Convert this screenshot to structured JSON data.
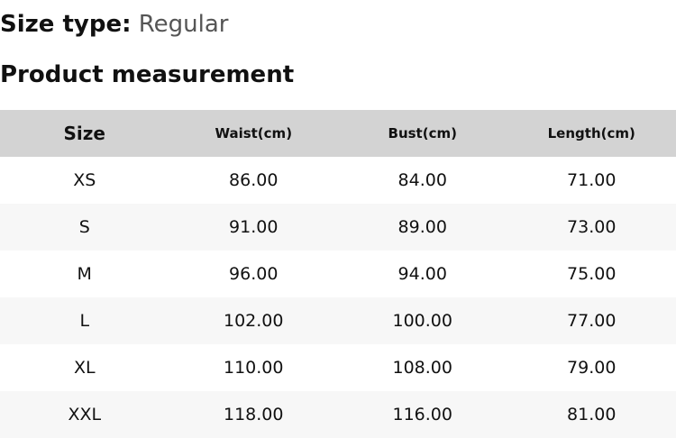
{
  "size_type": {
    "label": "Size type:",
    "value": "Regular"
  },
  "section_title": "Product measurement",
  "table": {
    "headers": [
      "Size",
      "Waist(cm)",
      "Bust(cm)",
      "Length(cm)"
    ],
    "rows": [
      [
        "XS",
        "86.00",
        "84.00",
        "71.00"
      ],
      [
        "S",
        "91.00",
        "89.00",
        "73.00"
      ],
      [
        "M",
        "96.00",
        "94.00",
        "75.00"
      ],
      [
        "L",
        "102.00",
        "100.00",
        "77.00"
      ],
      [
        "XL",
        "110.00",
        "108.00",
        "79.00"
      ],
      [
        "XXL",
        "118.00",
        "116.00",
        "81.00"
      ]
    ]
  },
  "colors": {
    "header_bg": "#d3d3d3",
    "alt_row_bg": "#f7f7f7"
  }
}
